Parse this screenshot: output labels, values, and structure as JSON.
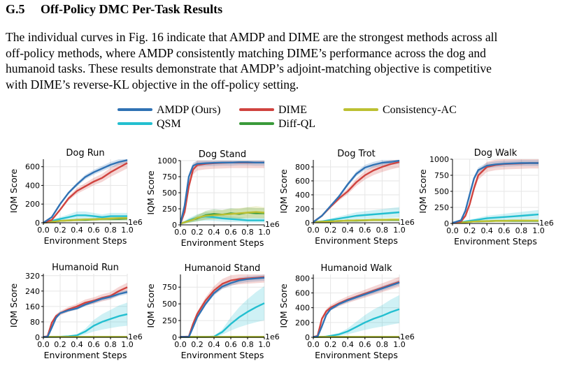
{
  "section": {
    "number": "G.5",
    "title": "Off-Policy DMC Per-Task Results"
  },
  "paragraph_lines": [
    "The individual curves in Fig. 16 indicate that AMDP and DIME are the strongest methods across all",
    "off-policy methods, where AMDP consistently matching DIME’s performance across the dog and",
    "humanoid tasks. These results demonstrate that AMDP’s adjoint-matching objective is competitive",
    "with DIME’s reverse-KL objective in the off-policy setting."
  ],
  "colors": {
    "AMDP (Ours)": "#3072b4",
    "DIME": "#d0433f",
    "Consistency-AC": "#bcc032",
    "QSM": "#23bfd0",
    "Diff-QL": "#3a9a3a",
    "grid": "#e6e6e6"
  },
  "legend": [
    "AMDP (Ours)",
    "DIME",
    "Consistency-AC",
    "QSM",
    "Diff-QL"
  ],
  "chart_data": [
    {
      "type": "line",
      "title": "Dog Run",
      "xlabel": "Environment Steps",
      "ylabel": "IQM Score",
      "x_multiplier": "1e6",
      "xlim": [
        0,
        1.0
      ],
      "xticks": [
        0.0,
        0.2,
        0.4,
        0.6,
        0.8,
        1.0
      ],
      "ylim": [
        0,
        680
      ],
      "yticks": [
        0,
        200,
        400,
        600
      ],
      "grid": true,
      "x": [
        0,
        0.1,
        0.2,
        0.3,
        0.4,
        0.5,
        0.6,
        0.7,
        0.8,
        0.9,
        1.0
      ],
      "series": [
        {
          "name": "AMDP (Ours)",
          "values": [
            0,
            60,
            200,
            320,
            410,
            490,
            540,
            580,
            620,
            650,
            670
          ]
        },
        {
          "name": "DIME",
          "values": [
            0,
            30,
            140,
            260,
            340,
            390,
            440,
            480,
            540,
            590,
            640
          ]
        },
        {
          "name": "QSM",
          "values": [
            0,
            20,
            40,
            60,
            80,
            80,
            70,
            60,
            70,
            70,
            70
          ]
        },
        {
          "name": "Diff-QL",
          "values": [
            0,
            10,
            20,
            25,
            30,
            30,
            35,
            40,
            40,
            40,
            45
          ]
        },
        {
          "name": "Consistency-AC",
          "values": [
            0,
            10,
            20,
            25,
            30,
            35,
            35,
            40,
            45,
            50,
            50
          ]
        }
      ]
    },
    {
      "type": "line",
      "title": "Dog Stand",
      "xlabel": "Environment Steps",
      "ylabel": "IQM Score",
      "x_multiplier": "1e6",
      "xlim": [
        0,
        1.0
      ],
      "xticks": [
        0.0,
        0.2,
        0.4,
        0.6,
        0.8,
        1.0
      ],
      "ylim": [
        0,
        1000
      ],
      "yticks": [
        0,
        250,
        500,
        750,
        1000
      ],
      "grid": true,
      "x": [
        0,
        0.05,
        0.1,
        0.15,
        0.2,
        0.3,
        0.4,
        0.5,
        0.6,
        0.7,
        0.8,
        0.9,
        1.0
      ],
      "series": [
        {
          "name": "AMDP (Ours)",
          "values": [
            20,
            300,
            750,
            920,
            950,
            960,
            965,
            970,
            970,
            975,
            975,
            970,
            970
          ]
        },
        {
          "name": "DIME",
          "values": [
            20,
            200,
            600,
            860,
            930,
            950,
            960,
            965,
            970,
            970,
            970,
            970,
            970
          ]
        },
        {
          "name": "QSM",
          "values": [
            20,
            40,
            70,
            90,
            110,
            130,
            120,
            100,
            90,
            80,
            70,
            70,
            70
          ]
        },
        {
          "name": "Diff-QL",
          "values": [
            20,
            40,
            60,
            80,
            100,
            150,
            170,
            160,
            180,
            170,
            190,
            180,
            180
          ]
        },
        {
          "name": "Consistency-AC",
          "values": [
            20,
            40,
            60,
            80,
            110,
            140,
            150,
            160,
            170,
            180,
            190,
            200,
            190
          ]
        }
      ]
    },
    {
      "type": "line",
      "title": "Dog Trot",
      "xlabel": "Environment Steps",
      "ylabel": "IQM Score",
      "x_multiplier": "1e6",
      "xlim": [
        0,
        1.0
      ],
      "xticks": [
        0.0,
        0.2,
        0.4,
        0.6,
        0.8,
        1.0
      ],
      "ylim": [
        0,
        900
      ],
      "yticks": [
        0,
        200,
        400,
        600,
        800
      ],
      "grid": true,
      "x": [
        0,
        0.1,
        0.2,
        0.3,
        0.4,
        0.5,
        0.6,
        0.7,
        0.8,
        0.9,
        1.0
      ],
      "series": [
        {
          "name": "AMDP (Ours)",
          "values": [
            10,
            100,
            240,
            380,
            550,
            700,
            790,
            830,
            860,
            870,
            890
          ]
        },
        {
          "name": "DIME",
          "values": [
            10,
            100,
            230,
            350,
            450,
            580,
            680,
            750,
            800,
            840,
            870
          ]
        },
        {
          "name": "QSM",
          "values": [
            10,
            20,
            40,
            60,
            80,
            100,
            110,
            120,
            130,
            140,
            150
          ]
        },
        {
          "name": "Diff-QL",
          "values": [
            10,
            15,
            20,
            25,
            30,
            30,
            35,
            40,
            40,
            40,
            40
          ]
        },
        {
          "name": "Consistency-AC",
          "values": [
            10,
            15,
            20,
            25,
            30,
            35,
            35,
            40,
            40,
            45,
            45
          ]
        }
      ]
    },
    {
      "type": "line",
      "title": "Dog Walk",
      "xlabel": "Environment Steps",
      "ylabel": "IQM Score",
      "x_multiplier": "1e6",
      "xlim": [
        0,
        1.0
      ],
      "xticks": [
        0.0,
        0.2,
        0.4,
        0.6,
        0.8,
        1.0
      ],
      "ylim": [
        0,
        1000
      ],
      "yticks": [
        0,
        250,
        500,
        750,
        1000
      ],
      "grid": true,
      "x": [
        0,
        0.1,
        0.15,
        0.2,
        0.25,
        0.3,
        0.4,
        0.5,
        0.6,
        0.7,
        0.8,
        0.9,
        1.0
      ],
      "series": [
        {
          "name": "AMDP (Ours)",
          "values": [
            10,
            50,
            200,
            450,
            700,
            830,
            900,
            920,
            930,
            935,
            940,
            940,
            940
          ]
        },
        {
          "name": "DIME",
          "values": [
            10,
            30,
            120,
            300,
            550,
            750,
            880,
            910,
            925,
            930,
            935,
            940,
            940
          ]
        },
        {
          "name": "QSM",
          "values": [
            10,
            20,
            30,
            40,
            50,
            60,
            80,
            90,
            100,
            110,
            120,
            130,
            140
          ]
        },
        {
          "name": "Diff-QL",
          "values": [
            10,
            15,
            20,
            25,
            30,
            30,
            35,
            40,
            40,
            40,
            40,
            40,
            40
          ]
        },
        {
          "name": "Consistency-AC",
          "values": [
            10,
            15,
            20,
            25,
            30,
            35,
            35,
            40,
            40,
            45,
            45,
            45,
            45
          ]
        }
      ]
    },
    {
      "type": "line",
      "title": "Humanoid Run",
      "xlabel": "Environment Steps",
      "ylabel": "IQM Score",
      "x_multiplier": "1e6",
      "xlim": [
        0,
        1.0
      ],
      "xticks": [
        0.0,
        0.2,
        0.4,
        0.6,
        0.8,
        1.0
      ],
      "ylim": [
        0,
        330
      ],
      "yticks": [
        0,
        80,
        160,
        240,
        320
      ],
      "grid": true,
      "x": [
        0,
        0.05,
        0.1,
        0.15,
        0.2,
        0.3,
        0.4,
        0.5,
        0.6,
        0.7,
        0.8,
        0.9,
        1.0
      ],
      "series": [
        {
          "name": "AMDP (Ours)",
          "values": [
            2,
            2,
            50,
            100,
            125,
            140,
            150,
            170,
            185,
            200,
            210,
            225,
            235
          ]
        },
        {
          "name": "DIME",
          "values": [
            2,
            5,
            75,
            110,
            125,
            145,
            160,
            180,
            190,
            205,
            215,
            240,
            260
          ]
        },
        {
          "name": "QSM",
          "values": [
            2,
            2,
            2,
            2,
            3,
            5,
            10,
            30,
            60,
            80,
            95,
            110,
            120
          ]
        },
        {
          "name": "Diff-QL",
          "values": [
            2,
            2,
            2,
            2,
            2,
            2,
            2,
            2,
            2,
            2,
            2,
            2,
            2
          ]
        },
        {
          "name": "Consistency-AC",
          "values": [
            2,
            2,
            2,
            2,
            2,
            2,
            2,
            2,
            2,
            2,
            2,
            2,
            2
          ]
        }
      ]
    },
    {
      "type": "line",
      "title": "Humanoid Stand",
      "xlabel": "Environment Steps",
      "ylabel": "IQM Score",
      "x_multiplier": "1e6",
      "xlim": [
        0,
        1.0
      ],
      "xticks": [
        0.0,
        0.2,
        0.4,
        0.6,
        0.8,
        1.0
      ],
      "ylim": [
        0,
        940
      ],
      "yticks": [
        0,
        250,
        500,
        750
      ],
      "grid": true,
      "x": [
        0,
        0.1,
        0.15,
        0.2,
        0.3,
        0.4,
        0.5,
        0.6,
        0.7,
        0.8,
        0.9,
        1.0
      ],
      "series": [
        {
          "name": "AMDP (Ours)",
          "values": [
            5,
            5,
            150,
            300,
            500,
            660,
            760,
            810,
            850,
            870,
            880,
            890
          ]
        },
        {
          "name": "DIME",
          "values": [
            5,
            10,
            200,
            350,
            550,
            700,
            800,
            850,
            870,
            880,
            890,
            900
          ]
        },
        {
          "name": "QSM",
          "values": [
            5,
            5,
            5,
            5,
            5,
            10,
            80,
            200,
            300,
            380,
            450,
            510
          ]
        },
        {
          "name": "Diff-QL",
          "values": [
            5,
            5,
            5,
            5,
            5,
            5,
            5,
            5,
            5,
            5,
            5,
            5
          ]
        },
        {
          "name": "Consistency-AC",
          "values": [
            5,
            5,
            5,
            5,
            5,
            5,
            5,
            5,
            5,
            5,
            5,
            5
          ]
        }
      ]
    },
    {
      "type": "line",
      "title": "Humanoid Walk",
      "xlabel": "Environment Steps",
      "ylabel": "IQM Score",
      "x_multiplier": "1e6",
      "xlim": [
        0,
        1.0
      ],
      "xticks": [
        0.0,
        0.2,
        0.4,
        0.6,
        0.8,
        1.0
      ],
      "ylim": [
        0,
        850
      ],
      "yticks": [
        0,
        200,
        400,
        600,
        800
      ],
      "grid": true,
      "x": [
        0,
        0.05,
        0.1,
        0.15,
        0.2,
        0.3,
        0.4,
        0.5,
        0.6,
        0.7,
        0.8,
        0.9,
        1.0
      ],
      "series": [
        {
          "name": "AMDP (Ours)",
          "values": [
            5,
            10,
            150,
            300,
            380,
            450,
            500,
            540,
            580,
            620,
            660,
            700,
            740
          ]
        },
        {
          "name": "DIME",
          "values": [
            5,
            20,
            250,
            350,
            400,
            460,
            510,
            550,
            590,
            630,
            670,
            710,
            750
          ]
        },
        {
          "name": "QSM",
          "values": [
            5,
            5,
            5,
            10,
            20,
            40,
            80,
            140,
            200,
            250,
            290,
            340,
            380
          ]
        },
        {
          "name": "Diff-QL",
          "values": [
            5,
            5,
            5,
            5,
            5,
            5,
            5,
            5,
            5,
            5,
            5,
            5,
            5
          ]
        },
        {
          "name": "Consistency-AC",
          "values": [
            5,
            5,
            5,
            5,
            5,
            5,
            5,
            5,
            5,
            5,
            5,
            5,
            5
          ]
        }
      ]
    }
  ]
}
